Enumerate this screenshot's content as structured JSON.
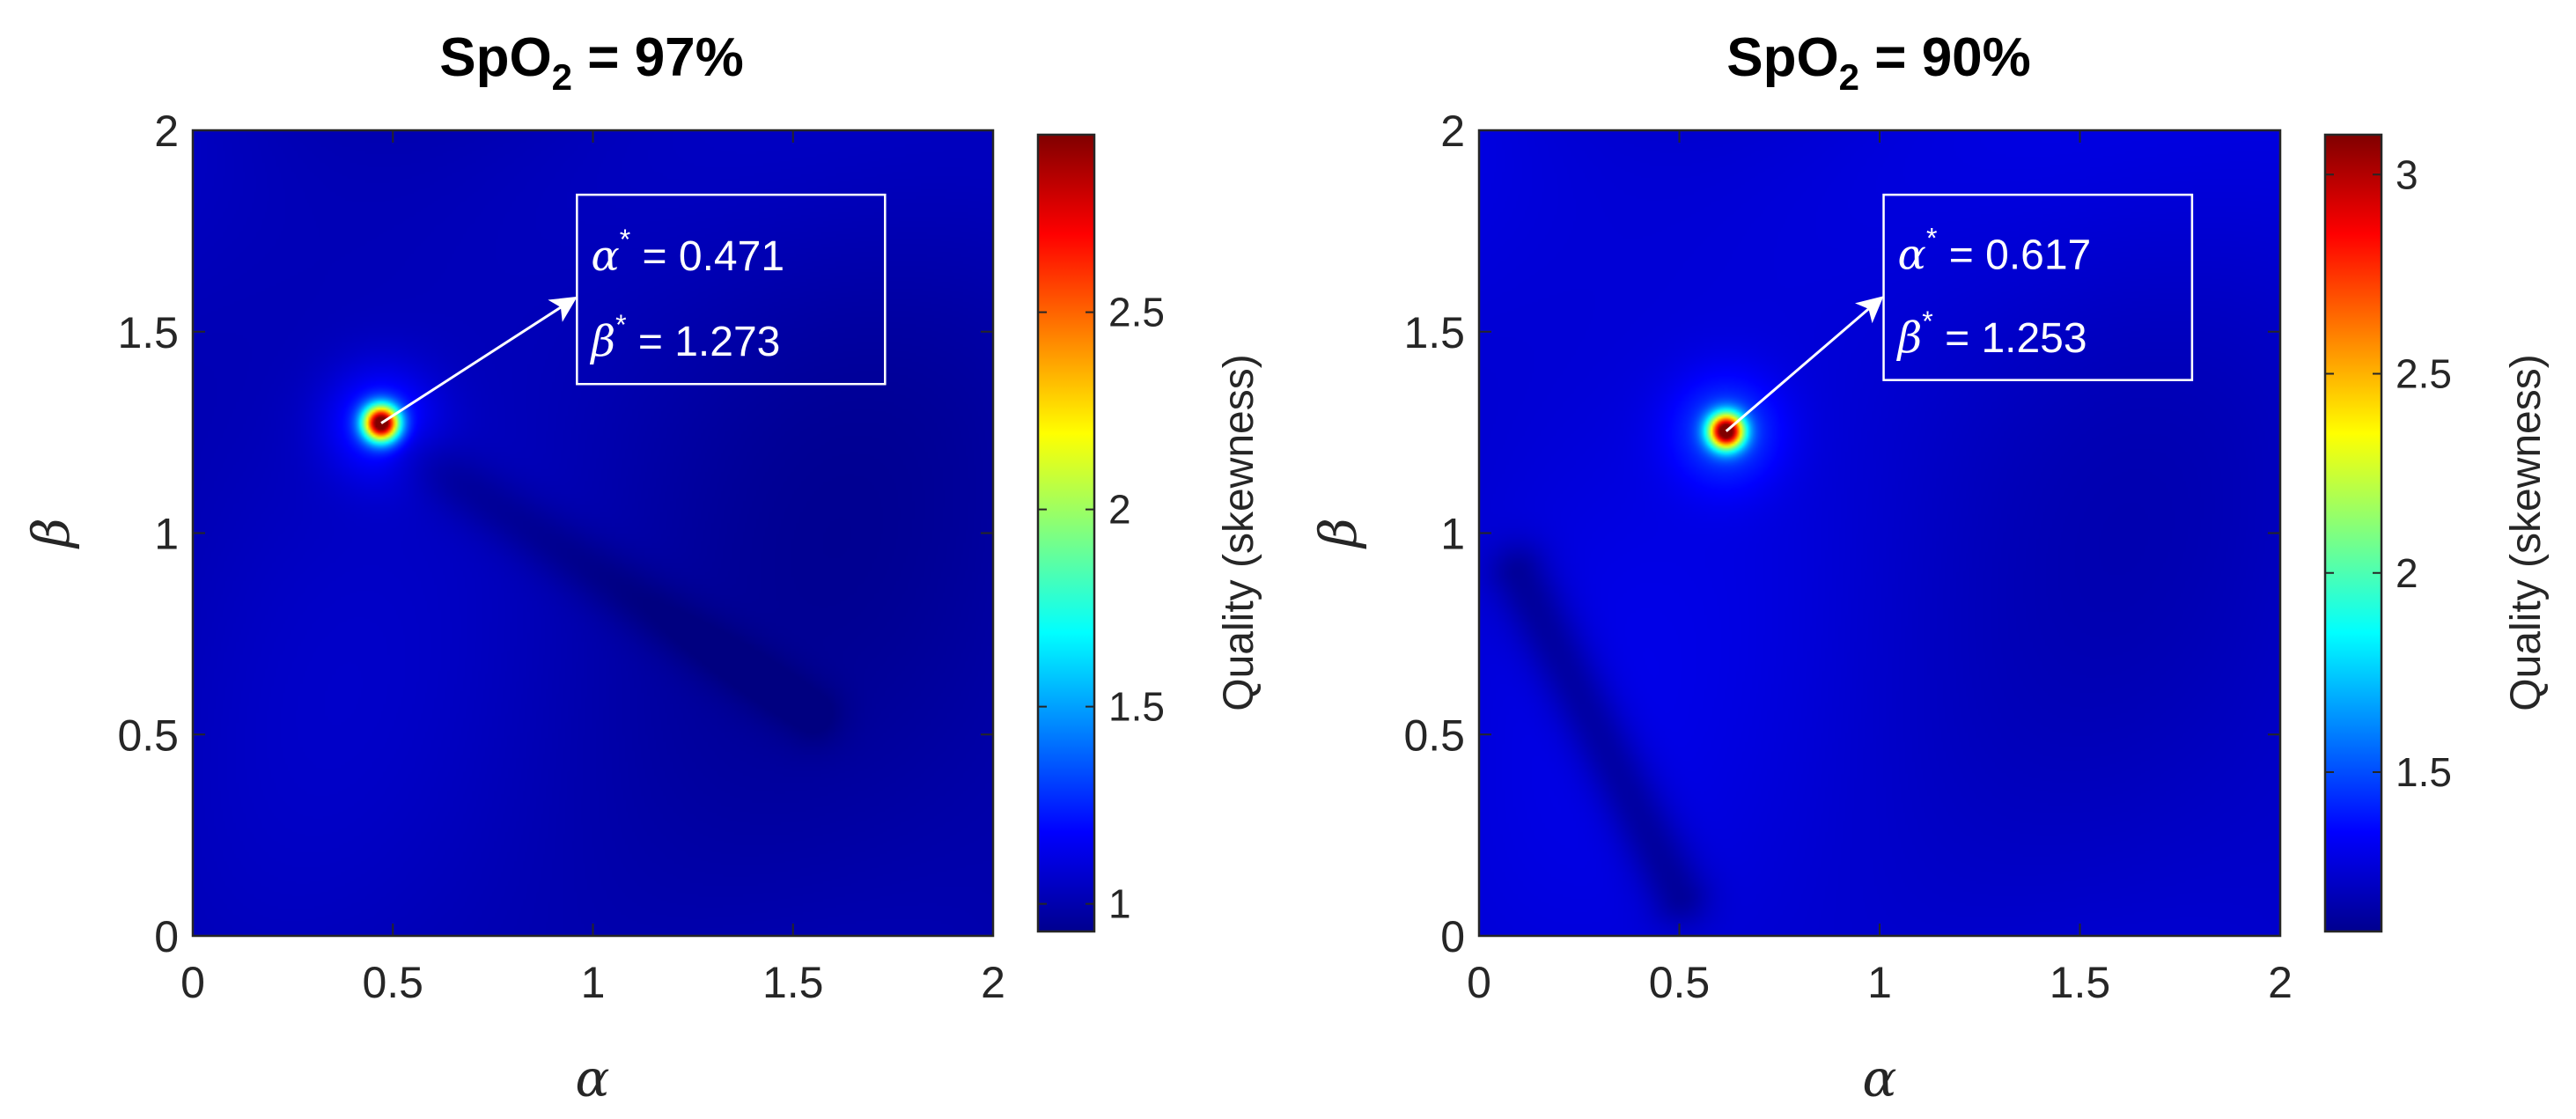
{
  "chart_data": [
    {
      "type": "heatmap",
      "title": "SpO",
      "title_subscript": "2",
      "title_suffix": " = 97%",
      "xlabel": "α",
      "ylabel": "β",
      "xlim": [
        0,
        2
      ],
      "ylim": [
        0,
        2
      ],
      "xticks": [
        0,
        0.5,
        1,
        1.5,
        2
      ],
      "yticks": [
        0,
        0.5,
        1,
        1.5,
        2
      ],
      "xtick_labels": [
        "0",
        "0.5",
        "1",
        "1.5",
        "2"
      ],
      "ytick_labels": [
        "0",
        "0.5",
        "1",
        "1.5",
        "2"
      ],
      "colormap": "jet",
      "colorbar": {
        "label": "Quality (skewness)",
        "range": [
          0.93,
          2.95
        ],
        "ticks": [
          1,
          1.5,
          2,
          2.5
        ],
        "tick_labels": [
          "1",
          "1.5",
          "2",
          "2.5"
        ]
      },
      "peak": {
        "alpha": 0.471,
        "beta": 1.273,
        "value": 2.95
      },
      "background_value": 1.02,
      "valley": {
        "from": [
          0.55,
          1.2
        ],
        "to": [
          1.55,
          0.55
        ],
        "value": 0.95
      },
      "annotation": {
        "alpha_symbol": "α",
        "beta_symbol": "β",
        "star": "*",
        "alpha_text": " = 0.471",
        "beta_text": " = 1.273",
        "box_from": [
          0.96,
          1.37
        ],
        "box_to": [
          1.73,
          1.84
        ],
        "arrow_tip": [
          0.95,
          1.58
        ]
      }
    },
    {
      "type": "heatmap",
      "title": "SpO",
      "title_subscript": "2",
      "title_suffix": " = 90%",
      "xlabel": "α",
      "ylabel": "β",
      "xlim": [
        0,
        2
      ],
      "ylim": [
        0,
        2
      ],
      "xticks": [
        0,
        0.5,
        1,
        1.5,
        2
      ],
      "yticks": [
        0,
        0.5,
        1,
        1.5,
        2
      ],
      "xtick_labels": [
        "0",
        "0.5",
        "1",
        "1.5",
        "2"
      ],
      "ytick_labels": [
        "0",
        "0.5",
        "1",
        "1.5",
        "2"
      ],
      "colormap": "jet",
      "colorbar": {
        "label": "Quality (skewness)",
        "range": [
          1.1,
          3.1
        ],
        "ticks": [
          1.5,
          2,
          2.5,
          3
        ],
        "tick_labels": [
          "1.5",
          "2",
          "2.5",
          "3"
        ]
      },
      "peak": {
        "alpha": 0.617,
        "beta": 1.253,
        "value": 3.1
      },
      "background_value": 1.25,
      "valley": {
        "from": [
          0.1,
          0.9
        ],
        "to": [
          0.5,
          0.1
        ],
        "value": 1.12
      },
      "annotation": {
        "alpha_symbol": "α",
        "beta_symbol": "β",
        "star": "*",
        "alpha_text": " = 0.617",
        "beta_text": " = 1.253",
        "box_from": [
          1.01,
          1.38
        ],
        "box_to": [
          1.78,
          1.84
        ],
        "arrow_tip": [
          1.0,
          1.58
        ]
      }
    }
  ]
}
